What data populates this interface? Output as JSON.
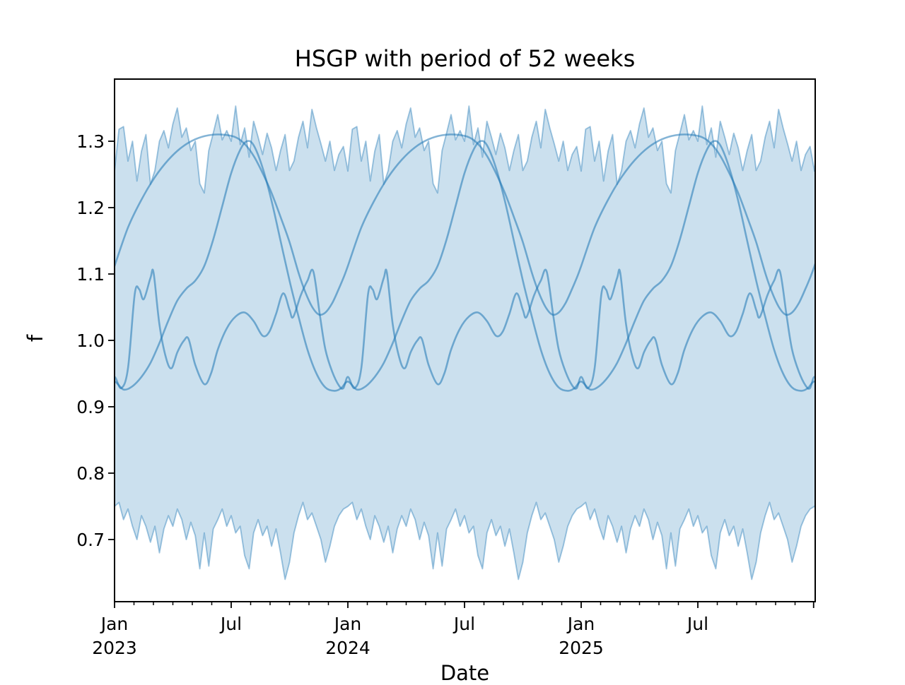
{
  "chart_data": {
    "type": "line",
    "title": "HSGP with period of 52 weeks",
    "xlabel": "Date",
    "ylabel": "f",
    "legend": null,
    "grid": false,
    "x_axis": {
      "unit": "weeks since 2023-01-01",
      "range_weeks": [
        0,
        156.2
      ],
      "major_ticks": [
        {
          "week": 0,
          "line1": "Jan",
          "line2": "2023"
        },
        {
          "week": 26,
          "line1": "Jul",
          "line2": ""
        },
        {
          "week": 52,
          "line1": "Jan",
          "line2": "2024"
        },
        {
          "week": 78,
          "line1": "Jul",
          "line2": ""
        },
        {
          "week": 104,
          "line1": "Jan",
          "line2": "2025"
        },
        {
          "week": 130,
          "line1": "Jul",
          "line2": ""
        },
        {
          "week": 155.8,
          "line1": "",
          "line2": ""
        }
      ],
      "minor_ticks_per_year": 12
    },
    "y_axis": {
      "range": [
        0.604,
        1.394
      ],
      "ticks": [
        {
          "value": 0.7,
          "label": "0.7"
        },
        {
          "value": 0.8,
          "label": "0.8"
        },
        {
          "value": 0.9,
          "label": "0.9"
        },
        {
          "value": 1.0,
          "label": "1.0"
        },
        {
          "value": 1.1,
          "label": "1.1"
        },
        {
          "value": 1.2,
          "label": "1.2"
        },
        {
          "value": 1.3,
          "label": "1.3"
        }
      ]
    },
    "band": {
      "name": "posterior-credible-band",
      "period_weeks": 52,
      "step_weeks": 1,
      "upper_weekly": [
        1.255,
        1.318,
        1.322,
        1.27,
        1.3,
        1.24,
        1.285,
        1.31,
        1.235,
        1.256,
        1.3,
        1.316,
        1.29,
        1.326,
        1.35,
        1.306,
        1.32,
        1.286,
        1.3,
        1.236,
        1.222,
        1.286,
        1.312,
        1.34,
        1.302,
        1.316,
        1.3,
        1.353,
        1.295,
        1.32,
        1.276,
        1.33,
        1.306,
        1.28,
        1.312,
        1.29,
        1.256,
        1.286,
        1.31,
        1.256,
        1.27,
        1.306,
        1.33,
        1.29,
        1.348,
        1.32,
        1.296,
        1.27,
        1.3,
        1.256,
        1.28,
        1.292
      ],
      "lower_weekly": [
        0.75,
        0.756,
        0.73,
        0.746,
        0.72,
        0.7,
        0.736,
        0.72,
        0.696,
        0.72,
        0.68,
        0.716,
        0.736,
        0.72,
        0.746,
        0.73,
        0.7,
        0.726,
        0.706,
        0.656,
        0.71,
        0.66,
        0.716,
        0.73,
        0.746,
        0.72,
        0.736,
        0.71,
        0.72,
        0.676,
        0.656,
        0.71,
        0.73,
        0.706,
        0.72,
        0.69,
        0.716,
        0.68,
        0.64,
        0.666,
        0.71,
        0.736,
        0.756,
        0.73,
        0.74,
        0.72,
        0.7,
        0.666,
        0.69,
        0.72,
        0.736,
        0.746
      ]
    },
    "series": [
      {
        "name": "sample-curve-1",
        "period_weeks": 52,
        "points": [
          [
            0,
            1.112
          ],
          [
            3,
            1.17
          ],
          [
            6,
            1.212
          ],
          [
            9,
            1.246
          ],
          [
            12,
            1.272
          ],
          [
            15,
            1.291
          ],
          [
            18,
            1.303
          ],
          [
            21,
            1.309
          ],
          [
            24,
            1.31
          ],
          [
            27,
            1.306
          ],
          [
            29,
            1.296
          ],
          [
            31,
            1.278
          ],
          [
            33,
            1.252
          ],
          [
            35,
            1.222
          ],
          [
            37,
            1.186
          ],
          [
            39,
            1.148
          ],
          [
            41,
            1.102
          ],
          [
            42.5,
            1.073
          ],
          [
            44,
            1.051
          ],
          [
            45.5,
            1.039
          ],
          [
            47,
            1.042
          ],
          [
            48.5,
            1.056
          ],
          [
            50,
            1.078
          ],
          [
            51,
            1.094
          ]
        ]
      },
      {
        "name": "sample-curve-2",
        "period_weeks": 52,
        "points": [
          [
            0,
            0.938
          ],
          [
            2,
            0.926
          ],
          [
            4,
            0.931
          ],
          [
            6,
            0.945
          ],
          [
            8,
            0.966
          ],
          [
            10,
            0.996
          ],
          [
            12,
            1.03
          ],
          [
            14,
            1.06
          ],
          [
            16,
            1.078
          ],
          [
            18,
            1.09
          ],
          [
            20,
            1.112
          ],
          [
            22,
            1.152
          ],
          [
            24,
            1.202
          ],
          [
            26,
            1.252
          ],
          [
            28,
            1.287
          ],
          [
            29.5,
            1.3
          ],
          [
            31,
            1.294
          ],
          [
            33,
            1.26
          ],
          [
            35,
            1.21
          ],
          [
            37,
            1.15
          ],
          [
            39,
            1.09
          ],
          [
            41,
            1.036
          ],
          [
            43,
            0.986
          ],
          [
            45,
            0.95
          ],
          [
            47,
            0.929
          ],
          [
            49,
            0.924
          ],
          [
            50.5,
            0.928
          ]
        ]
      },
      {
        "name": "sample-curve-3",
        "period_weeks": 52,
        "points": [
          [
            0,
            0.945
          ],
          [
            1.5,
            0.928
          ],
          [
            3,
            0.958
          ],
          [
            4.5,
            1.07
          ],
          [
            5.5,
            1.077
          ],
          [
            6.5,
            1.062
          ],
          [
            8,
            1.094
          ],
          [
            8.7,
            1.102
          ],
          [
            10,
            1.024
          ],
          [
            11.5,
            0.973
          ],
          [
            12.7,
            0.958
          ],
          [
            14,
            0.982
          ],
          [
            15.5,
            1.0
          ],
          [
            16.5,
            1.002
          ],
          [
            18,
            0.963
          ],
          [
            20,
            0.934
          ],
          [
            21.5,
            0.95
          ],
          [
            23,
            0.986
          ],
          [
            25,
            1.018
          ],
          [
            27,
            1.036
          ],
          [
            29,
            1.042
          ],
          [
            31,
            1.029
          ],
          [
            33,
            1.007
          ],
          [
            34.5,
            1.013
          ],
          [
            36,
            1.04
          ],
          [
            37.6,
            1.071
          ],
          [
            39,
            1.046
          ],
          [
            39.8,
            1.035
          ],
          [
            41.5,
            1.068
          ],
          [
            43,
            1.09
          ],
          [
            44.3,
            1.104
          ],
          [
            45.8,
            1.036
          ],
          [
            47,
            0.986
          ],
          [
            48.5,
            0.953
          ],
          [
            50,
            0.932
          ],
          [
            51,
            0.928
          ]
        ]
      }
    ],
    "colors": {
      "base_line": "#1f77b4",
      "curve_alpha": 0.55,
      "band_fill_alpha": 0.23,
      "band_edge_alpha": 0.42,
      "band_fill_rendered": "#cddeee",
      "band_edge_rendered": "#a9c6e0",
      "curve_rendered": "#79aed2",
      "axis": "#000000"
    }
  }
}
